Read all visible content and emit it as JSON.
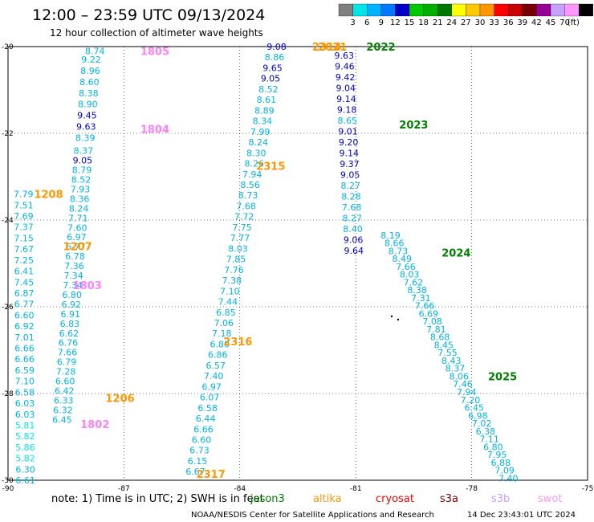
{
  "title": "12:00 – 23:59 UTC 09/13/2024",
  "subtitle": "12 hour collection of altimeter wave heights",
  "legend": {
    "unit": "(ft)",
    "bins": [
      {
        "label": "",
        "color": "#7f7f7f"
      },
      {
        "label": "3",
        "color": "#00e5e5"
      },
      {
        "label": "6",
        "color": "#00b4ff"
      },
      {
        "label": "9",
        "color": "#0078ff"
      },
      {
        "label": "12",
        "color": "#0000c8"
      },
      {
        "label": "15",
        "color": "#00c800"
      },
      {
        "label": "18",
        "color": "#00b000"
      },
      {
        "label": "21",
        "color": "#007800"
      },
      {
        "label": "24",
        "color": "#ffff00"
      },
      {
        "label": "27",
        "color": "#ffc800"
      },
      {
        "label": "30",
        "color": "#ff9600"
      },
      {
        "label": "33",
        "color": "#ff0000"
      },
      {
        "label": "36",
        "color": "#c80000"
      },
      {
        "label": "39",
        "color": "#780000"
      },
      {
        "label": "42",
        "color": "#960096"
      },
      {
        "label": "45",
        "color": "#c8a0ff"
      },
      {
        "label": "70",
        "color": "#ff96ff"
      },
      {
        "label": "",
        "color": "#000000"
      }
    ]
  },
  "map": {
    "lon_ticks": [
      "-90",
      "-87",
      "-84",
      "-81",
      "-78",
      "-75"
    ],
    "lat_ticks": [
      "-20",
      "-22",
      "-24",
      "-26",
      "-28",
      "-30"
    ]
  },
  "tracks": [
    {
      "id": "1805",
      "label": "1805",
      "color": "#ff80ff",
      "label_lon": -86.2,
      "label_lat": -20.1,
      "start": [
        -87.75,
        -20.1
      ],
      "end": [
        -87.75,
        -20.1
      ],
      "values": [
        "8.74"
      ],
      "colors": [
        "#00b4e6"
      ]
    },
    {
      "id": "1804",
      "label": "1804",
      "color": "#ff80ff",
      "label_lon": -86.2,
      "label_lat": -21.9,
      "start": [
        -87.85,
        -20.3
      ],
      "end": [
        -88.0,
        -22.1
      ],
      "values": [
        "9.22",
        "8.96",
        "8.60",
        "8.38",
        "8.90",
        "9.45",
        "9.63",
        "8.39"
      ],
      "colors": [
        "#00b4e6",
        "#00b4e6",
        "#00b4e6",
        "#00b4e6",
        "#00b4e6",
        "#0000c8",
        "#0000c8",
        "#00b4e6"
      ]
    },
    {
      "id": "1803",
      "label": "1803",
      "color": "#ff80ff",
      "label_lon": -87.95,
      "label_lat": -25.5,
      "start": [
        -88.05,
        -22.4
      ],
      "end": [
        -88.6,
        -28.6
      ],
      "values": [
        "8.37",
        "9.05",
        "8.79",
        "8.52",
        "7.93",
        "8.36",
        "8.24",
        "7.71",
        "7.60",
        "6.97",
        "6.77",
        "6.78",
        "7.36",
        "7.34",
        "7.34",
        "6.80",
        "6.92",
        "6.91",
        "6.83",
        "6.62",
        "6.76",
        "7.66",
        "6.79",
        "7.28",
        "6.60",
        "6.42",
        "6.33",
        "6.32",
        "6.45"
      ],
      "colors": [
        "#00b4e6",
        "#0000c8",
        "#00b4e6",
        "#00b4e6",
        "#00b4e6",
        "#00b4e6",
        "#00b4e6",
        "#00b4e6",
        "#00b4e6",
        "#00b4e6",
        "#00b4e6",
        "#00b4e6",
        "#00b4e6",
        "#00b4e6",
        "#00b4e6",
        "#00b4e6",
        "#00b4e6",
        "#00b4e6",
        "#00b4e6",
        "#00b4e6",
        "#00b4e6",
        "#00b4e6",
        "#00b4e6",
        "#00b4e6",
        "#00b4e6",
        "#00b4e6",
        "#00b4e6",
        "#00b4e6",
        "#00b4e6"
      ]
    },
    {
      "id": "1208",
      "label": "1208",
      "color": "#ff9600",
      "label_lon": -88.95,
      "label_lat": -23.4,
      "start": [
        -89.6,
        -23.4
      ],
      "end": [
        -89.55,
        -30.0
      ],
      "values": [
        "7.79",
        "7.51",
        "7.69",
        "7.37",
        "7.15",
        "7.67",
        "7.25",
        "6.41",
        "7.45",
        "6.87",
        "6.77",
        "6.60",
        "6.92",
        "7.01",
        "6.66",
        "6.66",
        "6.59",
        "7.10",
        "6.58",
        "6.03",
        "6.03",
        "5.81",
        "5.82",
        "5.86",
        "5.82",
        "6.30",
        "6.61"
      ],
      "colors": [
        "#00b4e6",
        "#00b4e6",
        "#00b4e6",
        "#00b4e6",
        "#00b4e6",
        "#00b4e6",
        "#00b4e6",
        "#00b4e6",
        "#00b4e6",
        "#00b4e6",
        "#00b4e6",
        "#00b4e6",
        "#00b4e6",
        "#00b4e6",
        "#00b4e6",
        "#00b4e6",
        "#00b4e6",
        "#00b4e6",
        "#00b4e6",
        "#00b4e6",
        "#00b4e6",
        "#00e5e5",
        "#00e5e5",
        "#00e5e5",
        "#00e5e5",
        "#00b4e6",
        "#00b4e6"
      ]
    },
    {
      "id": "1207",
      "label": "1207",
      "color": "#ff9600",
      "label_lon": -88.2,
      "label_lat": -24.6,
      "values": [],
      "colors": []
    },
    {
      "id": "1206",
      "label": "1206",
      "color": "#ff9600",
      "label_lon": -87.1,
      "label_lat": -28.1,
      "values": [],
      "colors": []
    },
    {
      "id": "1802",
      "label": "1802",
      "color": "#ff80ff",
      "label_lon": -87.75,
      "label_lat": -28.7,
      "values": [],
      "colors": []
    },
    {
      "id": "2315",
      "label": "2315",
      "color": "#ff9600",
      "label_lon": -83.2,
      "label_lat": -22.75,
      "start": [
        -83.05,
        -20.0
      ],
      "end": [
        -85.15,
        -29.8
      ],
      "values": [
        "9.08",
        "8.86",
        "9.65",
        "9.05",
        "8.52",
        "8.61",
        "8.89",
        "8.34",
        "7.99",
        "8.24",
        "8.30",
        "8.26",
        "7.94",
        "8.56",
        "8.73",
        "7.68",
        "7.72",
        "7.75",
        "7.77",
        "8.03",
        "7.85",
        "7.76",
        "7.38",
        "7.10",
        "7.44",
        "6.85",
        "7.06",
        "7.18",
        "6.80",
        "6.86",
        "6.57",
        "7.40",
        "6.97",
        "6.07",
        "6.58",
        "6.44",
        "6.66",
        "6.60",
        "6.73",
        "6.15",
        "6.67"
      ],
      "colors": [
        "#0000c8",
        "#00b4e6",
        "#0000c8",
        "#0000c8",
        "#00b4e6",
        "#00b4e6",
        "#00b4e6",
        "#00b4e6",
        "#00b4e6",
        "#00b4e6",
        "#00b4e6",
        "#00b4e6",
        "#00b4e6",
        "#00b4e6",
        "#00b4e6",
        "#00b4e6",
        "#00b4e6",
        "#00b4e6",
        "#00b4e6",
        "#00b4e6",
        "#00b4e6",
        "#00b4e6",
        "#00b4e6",
        "#00b4e6",
        "#00b4e6",
        "#00b4e6",
        "#00b4e6",
        "#00b4e6",
        "#00b4e6",
        "#00b4e6",
        "#00b4e6",
        "#00b4e6",
        "#00b4e6",
        "#00b4e6",
        "#00b4e6",
        "#00b4e6",
        "#00b4e6",
        "#00b4e6",
        "#00b4e6",
        "#00b4e6",
        "#00b4e6"
      ]
    },
    {
      "id": "2316",
      "label": "2316",
      "color": "#ff9600",
      "label_lon": -84.05,
      "label_lat": -26.8,
      "values": [],
      "colors": []
    },
    {
      "id": "2317",
      "label": "2317",
      "color": "#ff9600",
      "label_lon": -84.75,
      "label_lat": -29.85,
      "values": [],
      "colors": []
    },
    {
      "id": "2314",
      "label": "2314",
      "color": "#ff9600",
      "label_lon": -81.75,
      "label_lat": -20.0,
      "values": [],
      "colors": []
    },
    {
      "id": "2021",
      "label": "2021",
      "color": "#ff9600",
      "label_lon": -81.6,
      "label_lat": -20.0,
      "values": [],
      "colors": []
    },
    {
      "id": "2022",
      "label": "2022",
      "color": "#008000",
      "label_lon": -80.35,
      "label_lat": -20.0,
      "start": [
        -81.3,
        -20.2
      ],
      "end": [
        -81.05,
        -24.7
      ],
      "values": [
        "9.63",
        "9.46",
        "9.42",
        "9.04",
        "9.14",
        "9.18",
        "8.65",
        "9.01",
        "9.20",
        "9.14",
        "9.37",
        "9.05",
        "8.27",
        "8.28",
        "7.68",
        "8.27",
        "8.40",
        "9.06",
        "9.64"
      ],
      "colors": [
        "#0000c8",
        "#0000c8",
        "#0000c8",
        "#0000c8",
        "#0000c8",
        "#0000c8",
        "#00b4e6",
        "#0000c8",
        "#0000c8",
        "#0000c8",
        "#0000c8",
        "#0000c8",
        "#00b4e6",
        "#00b4e6",
        "#00b4e6",
        "#00b4e6",
        "#00b4e6",
        "#0000c8",
        "#0000c8"
      ]
    },
    {
      "id": "2023",
      "label": "2023",
      "color": "#008000",
      "label_lon": -79.5,
      "label_lat": -21.8,
      "start": [
        -80.1,
        -24.35
      ],
      "end": [
        -77.05,
        -29.95
      ],
      "values": [
        "8.19",
        "8.66",
        "8.73",
        "8.49",
        "7.66",
        "8.03",
        "7.62",
        "8.38",
        "7.31",
        "7.66",
        "6.69",
        "7.08",
        "7.81",
        "8.68",
        "8.45",
        "7.55",
        "8.43",
        "8.37",
        "8.06",
        "7.46",
        "7.94",
        "7.20",
        "6.45",
        "6.98",
        "7.02",
        "6.38",
        "7.11",
        "6.80",
        "7.95",
        "6.88",
        "7.09",
        "7.40"
      ],
      "colors": [
        "#00b4e6",
        "#00b4e6",
        "#00b4e6",
        "#00b4e6",
        "#00b4e6",
        "#00b4e6",
        "#00b4e6",
        "#00b4e6",
        "#00b4e6",
        "#00b4e6",
        "#00b4e6",
        "#00b4e6",
        "#00b4e6",
        "#00b4e6",
        "#00b4e6",
        "#00b4e6",
        "#00b4e6",
        "#00b4e6",
        "#00b4e6",
        "#00b4e6",
        "#00b4e6",
        "#00b4e6",
        "#00b4e6",
        "#00b4e6",
        "#00b4e6",
        "#00b4e6",
        "#00b4e6",
        "#00b4e6",
        "#00b4e6",
        "#00b4e6",
        "#00b4e6",
        "#00b4e6"
      ]
    },
    {
      "id": "2024",
      "label": "2024",
      "color": "#008000",
      "label_lon": -78.4,
      "label_lat": -24.75,
      "values": [],
      "colors": []
    },
    {
      "id": "2025",
      "label": "2025",
      "color": "#008000",
      "label_lon": -77.2,
      "label_lat": -27.6,
      "values": [],
      "colors": []
    }
  ],
  "footer": {
    "note": "note:  1) Time is in UTC; 2) SWH is in feet",
    "satellites": [
      {
        "name": "jason3",
        "color": "#008000"
      },
      {
        "name": "altika",
        "color": "#ff9600"
      },
      {
        "name": "cryosat",
        "color": "#ff0000"
      },
      {
        "name": "s3a",
        "color": "#780000"
      },
      {
        "name": "s3b",
        "color": "#c8a0ff"
      },
      {
        "name": "swot",
        "color": "#ff96ff"
      }
    ],
    "credit": "NOAA/NESDIS Center for Satellite Applications and Research",
    "timestamp": "14 Dec 23:43:01 UTC 2024"
  }
}
